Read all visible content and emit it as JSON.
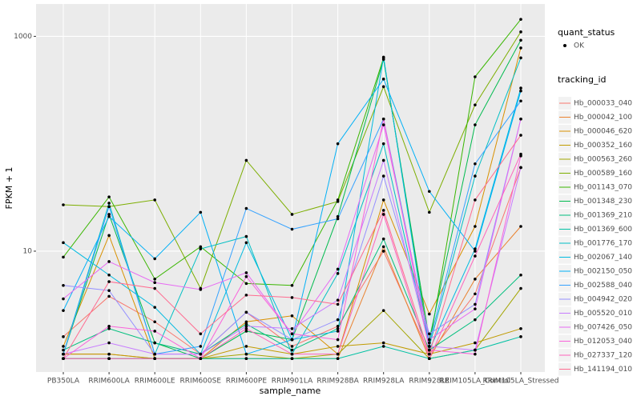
{
  "chart_data": {
    "type": "line",
    "x_label": "sample_name",
    "y_label": "FPKM + 1",
    "yscale": "log",
    "ylim": [
      0.75,
      2000
    ],
    "yticks": [
      10,
      1000
    ],
    "grid": true,
    "legend_position": "right",
    "point_color": "#000000",
    "shape_legend": {
      "title": "quant_status",
      "labels": [
        "OK"
      ]
    },
    "color_legend_title": "tracking_id",
    "categories": [
      "PB350LA",
      "RRIM600LA",
      "RRIM600LE",
      "RRIM600SE",
      "RRIM600PE",
      "RRIM901LA",
      "RRIM928BA",
      "RRIM928LA",
      "RRIM928LE",
      "RRIM105LA_Control",
      "RRIM105LA_Stressed"
    ],
    "series": [
      {
        "name": "Hb_000033_040",
        "color": "#F8766D",
        "values": [
          1.6,
          3.8,
          2.2,
          1.1,
          2.7,
          1.3,
          2.0,
          10,
          1.1,
          4,
          60
        ]
      },
      {
        "name": "Hb_000042_100",
        "color": "#EA8331",
        "values": [
          1.1,
          1.1,
          1,
          1,
          1,
          1,
          1,
          11,
          1,
          5.5,
          17
        ]
      },
      {
        "name": "Hb_000046_620",
        "color": "#D89000",
        "values": [
          1.3,
          14,
          1,
          1,
          2.2,
          2.5,
          1.1,
          30,
          2.6,
          17,
          780
        ]
      },
      {
        "name": "Hb_000352_160",
        "color": "#C09B00",
        "values": [
          1.1,
          1.1,
          1,
          1,
          1.3,
          1.1,
          1.3,
          1.4,
          1.1,
          1.4,
          1.9
        ]
      },
      {
        "name": "Hb_000563_260",
        "color": "#A3A500",
        "values": [
          1,
          1,
          1,
          1,
          1.1,
          1,
          1.1,
          2.8,
          1,
          1.2,
          4.5
        ]
      },
      {
        "name": "Hb_000589_160",
        "color": "#7CAE00",
        "values": [
          27,
          26,
          30,
          4.5,
          70,
          22,
          29,
          340,
          23,
          230,
          1100
        ]
      },
      {
        "name": "Hb_001143_070",
        "color": "#39B600",
        "values": [
          8.8,
          32,
          5.5,
          11,
          5,
          4.8,
          30,
          630,
          1.3,
          420,
          1440
        ]
      },
      {
        "name": "Hb_001348_230",
        "color": "#00BB4E",
        "values": [
          1.1,
          22,
          1.4,
          1,
          1.8,
          1.5,
          21,
          610,
          1.5,
          150,
          920
        ]
      },
      {
        "name": "Hb_001369_210",
        "color": "#00BF7D",
        "values": [
          1.2,
          1.9,
          1.4,
          1.1,
          2.1,
          1.2,
          1.9,
          13,
          1.2,
          2.3,
          6
        ]
      },
      {
        "name": "Hb_001369_600",
        "color": "#00C1A3",
        "values": [
          1,
          1,
          1,
          1,
          1,
          1,
          1,
          1.3,
          1,
          1.2,
          1.6
        ]
      },
      {
        "name": "Hb_001776_170",
        "color": "#00BFC4",
        "values": [
          1.1,
          28,
          1.1,
          10.5,
          13.7,
          1.1,
          6.2,
          100,
          1.3,
          50,
          630
        ]
      },
      {
        "name": "Hb_002067_140",
        "color": "#00BAE0",
        "values": [
          12,
          6,
          3,
          1.1,
          12,
          1.5,
          1.8,
          640,
          1.2,
          10.5,
          330
        ]
      },
      {
        "name": "Hb_002150_050",
        "color": "#00B0F6",
        "values": [
          2.8,
          21,
          8.5,
          23,
          1.1,
          1.5,
          100,
          400,
          36,
          10,
          310
        ]
      },
      {
        "name": "Hb_002588_040",
        "color": "#35A2FF",
        "values": [
          1.1,
          26,
          1.1,
          1.3,
          25,
          16,
          20,
          170,
          1.4,
          65,
          250
        ]
      },
      {
        "name": "Hb_004942_020",
        "color": "#9590FF",
        "values": [
          4.8,
          4.3,
          1.1,
          1.1,
          2.7,
          1.5,
          2.3,
          50,
          1.7,
          3.2,
          170
        ]
      },
      {
        "name": "Hb_005520_010",
        "color": "#C77CFF",
        "values": [
          1.1,
          1.4,
          1.1,
          1.1,
          2,
          1.9,
          3.5,
          70,
          1.3,
          1.2,
          60
        ]
      },
      {
        "name": "Hb_007426_050",
        "color": "#E76BF3",
        "values": [
          3.6,
          8,
          5.1,
          4.4,
          6.3,
          1.7,
          6.8,
          150,
          1.5,
          2.9,
          170
        ]
      },
      {
        "name": "Hb_012053_040",
        "color": "#FA62DB",
        "values": [
          1,
          2,
          1.8,
          1,
          5.8,
          1.7,
          1.5,
          170,
          1.2,
          1.1,
          77
        ]
      },
      {
        "name": "Hb_027337_120",
        "color": "#FF62BC",
        "values": [
          1,
          1,
          1,
          1,
          1.9,
          1.1,
          1.1,
          22,
          1,
          9,
          80
        ]
      },
      {
        "name": "Hb_141194_010",
        "color": "#FF6C91",
        "values": [
          1,
          5.2,
          4.5,
          1.7,
          3.9,
          3.7,
          3.2,
          24,
          1.1,
          30,
          120
        ]
      }
    ]
  }
}
